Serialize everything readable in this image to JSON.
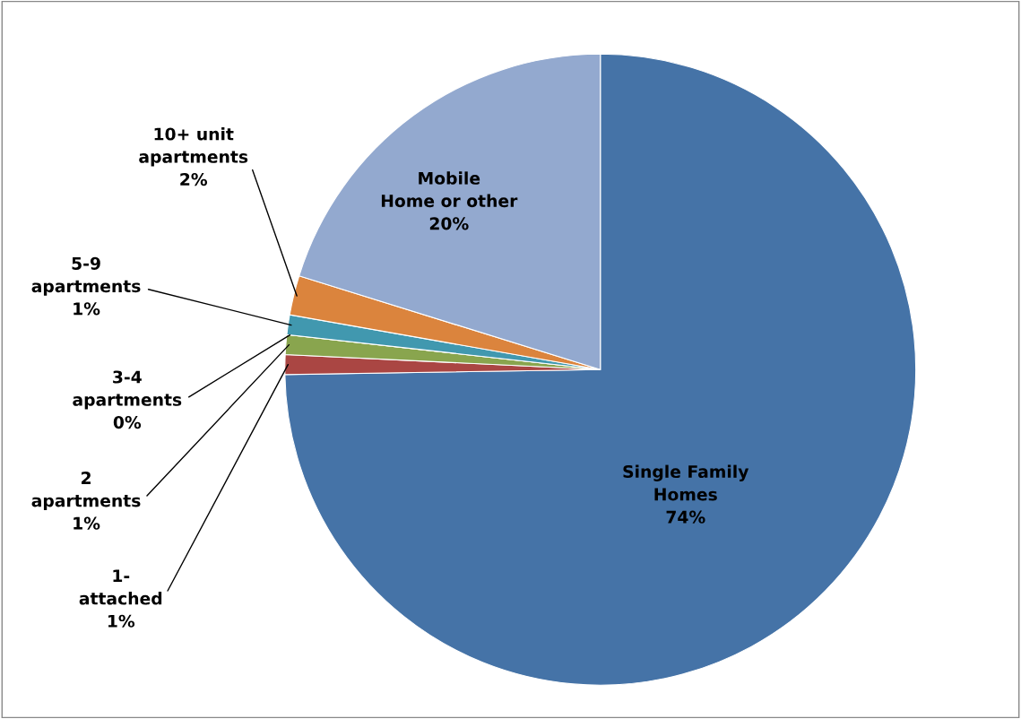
{
  "chart_data": {
    "type": "pie",
    "categories": [
      "Single Family\nHomes",
      "1-\nattached",
      "2\napartments",
      "3-4\napartments",
      "5-9\napartments",
      "10+ unit\napartments",
      "Mobile\nHome or other"
    ],
    "values": [
      74,
      1,
      1,
      0,
      1,
      2,
      20
    ],
    "value_labels": [
      "74%",
      "1%",
      "1%",
      "0%",
      "1%",
      "2%",
      "20%"
    ],
    "colors": [
      "#4573a7",
      "#aa4643",
      "#89a54e",
      "#71588f",
      "#4198af",
      "#db843d",
      "#93a9cf"
    ],
    "legend": false
  }
}
